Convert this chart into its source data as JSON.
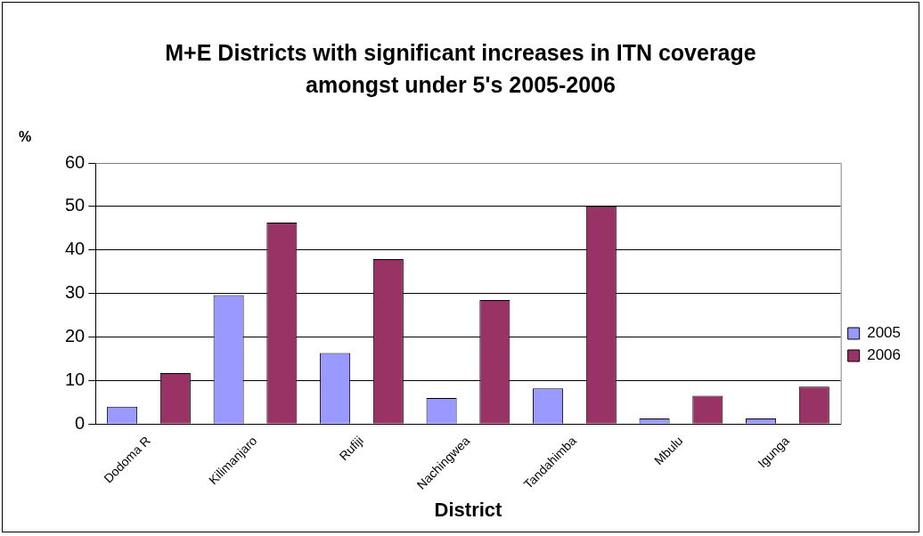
{
  "chart_data": {
    "type": "bar",
    "title": "M+E Districts with significant increases in ITN coverage amongst under 5's 2005-2006",
    "xlabel": "District",
    "ylabel": "%",
    "categories": [
      "Dodoma R",
      "Kilimanjaro",
      "Rufiji",
      "Nachingwea",
      "Tandahimba",
      "Mbulu",
      "Igunga"
    ],
    "series": [
      {
        "name": "2005",
        "color": "#9999ff",
        "values": [
          4,
          29.6,
          16.3,
          6,
          8.2,
          1.3,
          1.3
        ]
      },
      {
        "name": "2006",
        "color": "#993366",
        "values": [
          11.7,
          46.3,
          37.9,
          28.5,
          50,
          6.5,
          8.6
        ]
      }
    ],
    "ylim": [
      0,
      60
    ],
    "yticks": [
      0,
      10,
      20,
      30,
      40,
      50,
      60
    ],
    "grid": "y",
    "legend": "right"
  }
}
